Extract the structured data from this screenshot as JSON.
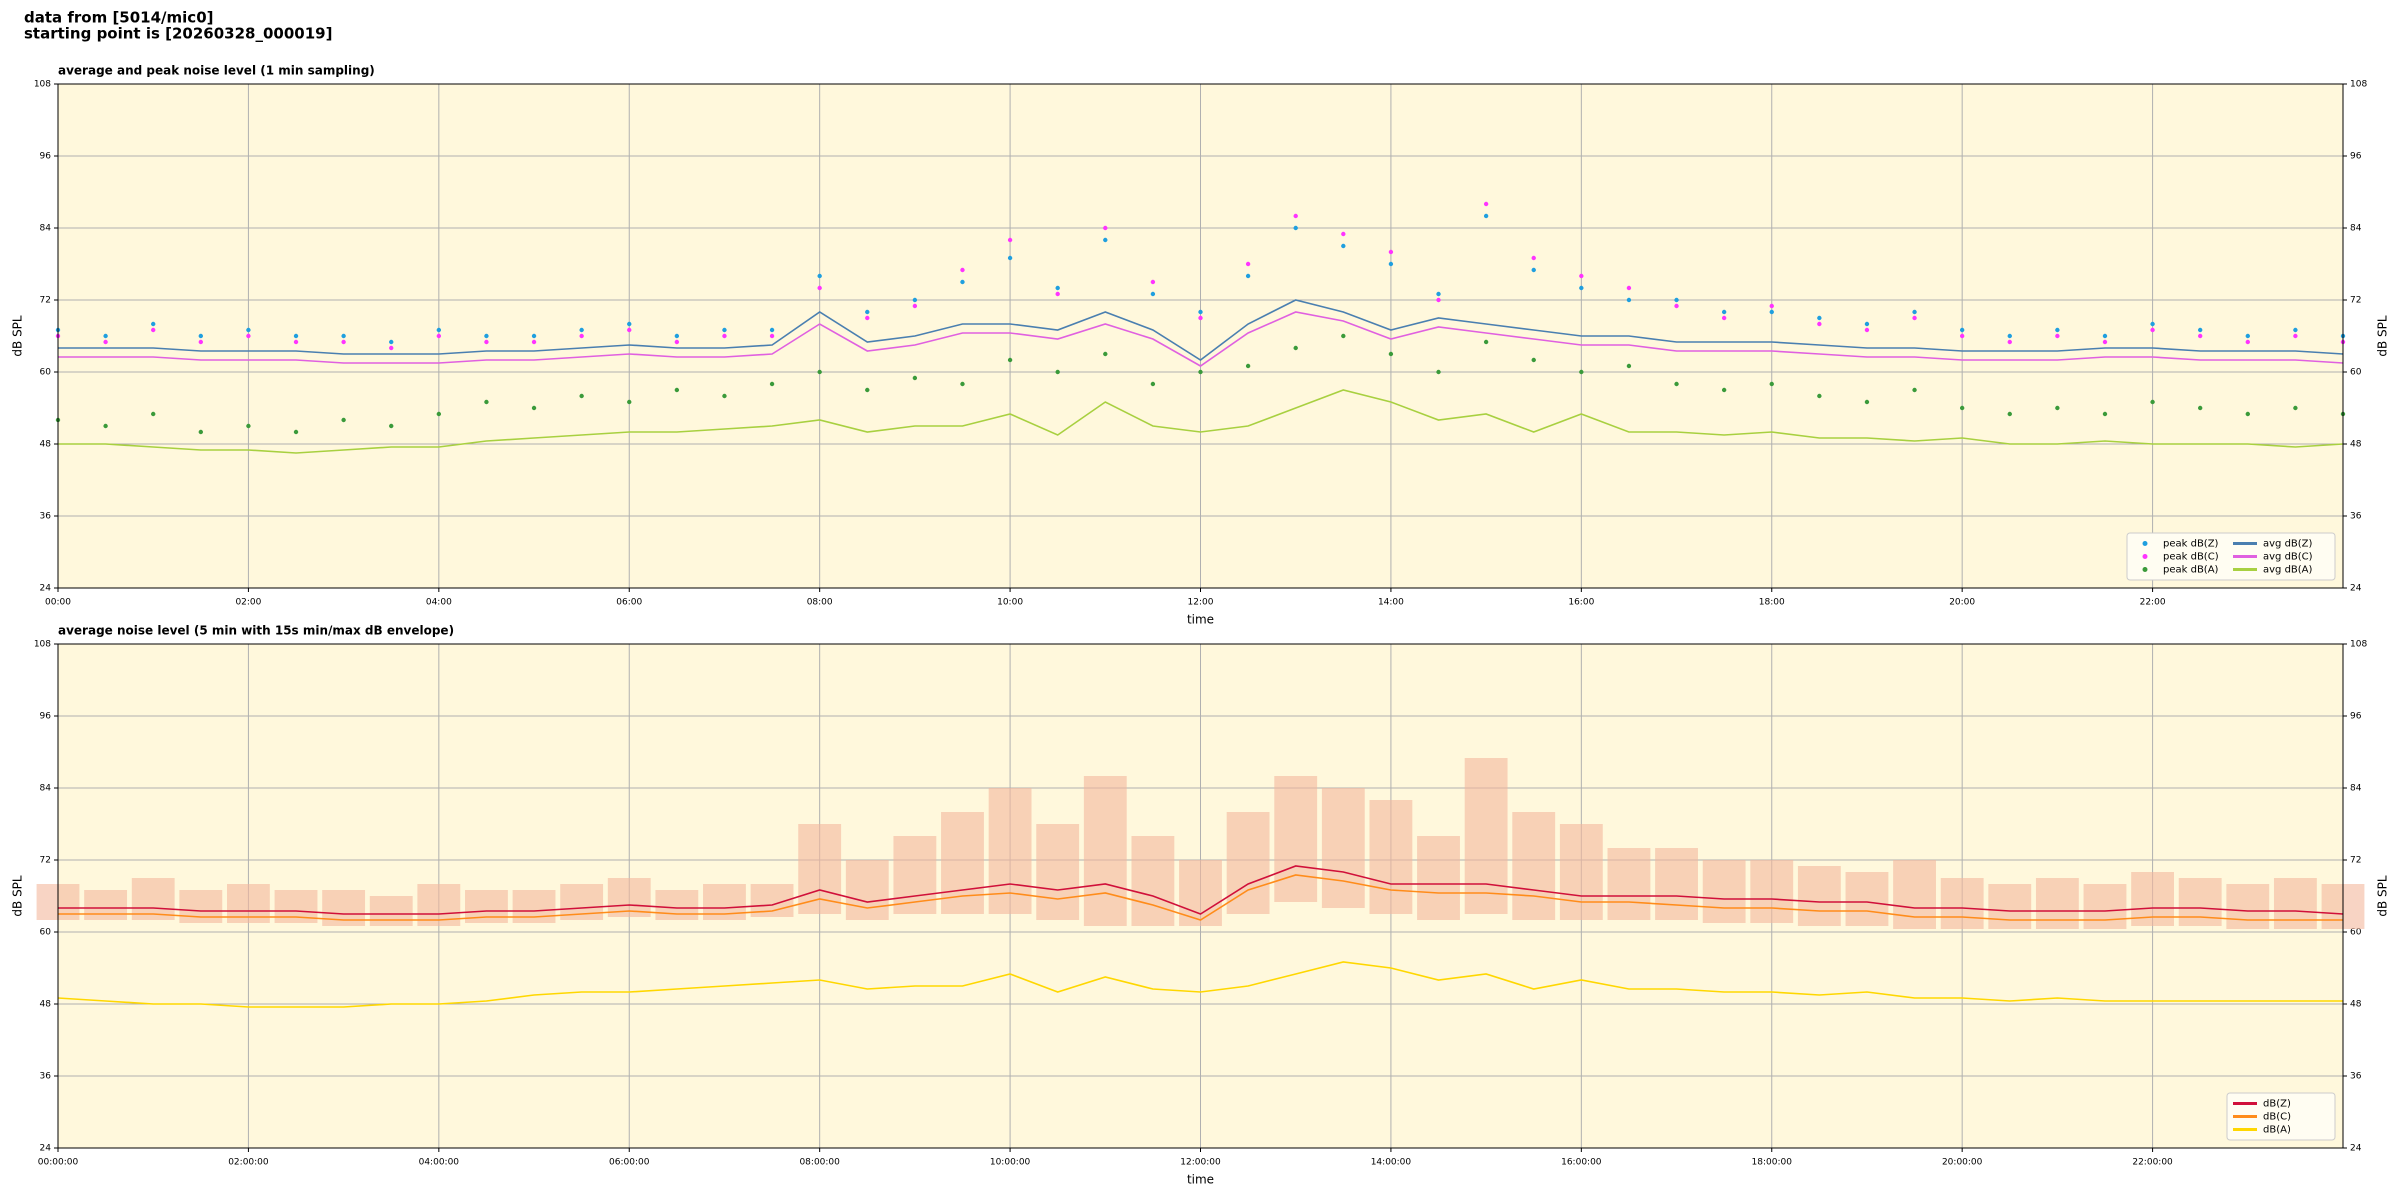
{
  "header": {
    "lines": [
      "data from [5014/mic0]",
      "starting point is [20260328_000019]"
    ]
  },
  "chart_data": [
    {
      "type": "line",
      "title": "average and peak noise level (1 min sampling)",
      "x_label": "time",
      "y_label": "dB SPL",
      "xlim": [
        0,
        24
      ],
      "ylim": [
        24,
        108
      ],
      "xticks": [
        {
          "value": 0,
          "label": "00:00"
        },
        {
          "value": 2,
          "label": "02:00"
        },
        {
          "value": 4,
          "label": "04:00"
        },
        {
          "value": 6,
          "label": "06:00"
        },
        {
          "value": 8,
          "label": "08:00"
        },
        {
          "value": 10,
          "label": "10:00"
        },
        {
          "value": 12,
          "label": "12:00"
        },
        {
          "value": 14,
          "label": "14:00"
        },
        {
          "value": 16,
          "label": "16:00"
        },
        {
          "value": 18,
          "label": "18:00"
        },
        {
          "value": 20,
          "label": "20:00"
        },
        {
          "value": 22,
          "label": "22:00"
        }
      ],
      "yticks": [
        24,
        36,
        48,
        60,
        72,
        84,
        96,
        108
      ],
      "grid": true,
      "background": "#fff8dc",
      "legend": "lower right",
      "legend_ncol": 2,
      "x": [
        0,
        0.5,
        1,
        1.5,
        2,
        2.5,
        3,
        3.5,
        4,
        4.5,
        5,
        5.5,
        6,
        6.5,
        7,
        7.5,
        8,
        8.5,
        9,
        9.5,
        10,
        10.5,
        11,
        11.5,
        12,
        12.5,
        13,
        13.5,
        14,
        14.5,
        15,
        15.5,
        16,
        16.5,
        17,
        17.5,
        18,
        18.5,
        19,
        19.5,
        20,
        20.5,
        21,
        21.5,
        22,
        22.5,
        23,
        23.5,
        24
      ],
      "series": [
        {
          "name": "peak dB(Z)",
          "type": "scatter",
          "color": "#1f9fdf",
          "values": [
            67,
            66,
            68,
            66,
            67,
            66,
            66,
            65,
            67,
            66,
            66,
            67,
            68,
            66,
            67,
            67,
            76,
            70,
            72,
            75,
            79,
            74,
            82,
            73,
            70,
            76,
            84,
            81,
            78,
            73,
            86,
            77,
            74,
            72,
            72,
            70,
            70,
            69,
            68,
            70,
            67,
            66,
            67,
            66,
            68,
            67,
            66,
            67,
            66
          ]
        },
        {
          "name": "peak dB(C)",
          "type": "scatter",
          "color": "#ff33ff",
          "values": [
            66,
            65,
            67,
            65,
            66,
            65,
            65,
            64,
            66,
            65,
            65,
            66,
            67,
            65,
            66,
            66,
            74,
            69,
            71,
            77,
            82,
            73,
            84,
            75,
            69,
            78,
            86,
            83,
            80,
            72,
            88,
            79,
            76,
            74,
            71,
            69,
            71,
            68,
            67,
            69,
            66,
            65,
            66,
            65,
            67,
            66,
            65,
            66,
            65
          ]
        },
        {
          "name": "peak dB(A)",
          "type": "scatter",
          "color": "#3a9a3a",
          "values": [
            52,
            51,
            53,
            50,
            51,
            50,
            52,
            51,
            53,
            55,
            54,
            56,
            55,
            57,
            56,
            58,
            60,
            57,
            59,
            58,
            62,
            60,
            63,
            58,
            60,
            61,
            64,
            66,
            63,
            60,
            65,
            62,
            60,
            61,
            58,
            57,
            58,
            56,
            55,
            57,
            54,
            53,
            54,
            53,
            55,
            54,
            53,
            54,
            53
          ]
        },
        {
          "name": "avg dB(Z)",
          "type": "line",
          "color": "#4a7fb0",
          "values": [
            64,
            64,
            64,
            63.5,
            63.5,
            63.5,
            63,
            63,
            63,
            63.5,
            63.5,
            64,
            64.5,
            64,
            64,
            64.5,
            70,
            65,
            66,
            68,
            68,
            67,
            70,
            67,
            62,
            68,
            72,
            70,
            67,
            69,
            68,
            67,
            66,
            66,
            65,
            65,
            65,
            64.5,
            64,
            64,
            63.5,
            63.5,
            63.5,
            64,
            64,
            63.5,
            63.5,
            63.5,
            63
          ]
        },
        {
          "name": "avg dB(C)",
          "type": "line",
          "color": "#e060e0",
          "values": [
            62.5,
            62.5,
            62.5,
            62,
            62,
            62,
            61.5,
            61.5,
            61.5,
            62,
            62,
            62.5,
            63,
            62.5,
            62.5,
            63,
            68,
            63.5,
            64.5,
            66.5,
            66.5,
            65.5,
            68,
            65.5,
            61,
            66.5,
            70,
            68.5,
            65.5,
            67.5,
            66.5,
            65.5,
            64.5,
            64.5,
            63.5,
            63.5,
            63.5,
            63,
            62.5,
            62.5,
            62,
            62,
            62,
            62.5,
            62.5,
            62,
            62,
            62,
            61.5
          ]
        },
        {
          "name": "avg dB(A)",
          "type": "line",
          "color": "#a8d040",
          "values": [
            48,
            48,
            47.5,
            47,
            47,
            46.5,
            47,
            47.5,
            47.5,
            48.5,
            49,
            49.5,
            50,
            50,
            50.5,
            51,
            52,
            50,
            51,
            51,
            53,
            49.5,
            55,
            51,
            50,
            51,
            54,
            57,
            55,
            52,
            53,
            50,
            53,
            50,
            50,
            49.5,
            50,
            49,
            49,
            48.5,
            49,
            48,
            48,
            48.5,
            48,
            48,
            48,
            47.5,
            48
          ]
        }
      ]
    },
    {
      "type": "line",
      "title": "average noise level (5 min with 15s min/max dB envelope)",
      "x_label": "time",
      "y_label": "dB SPL",
      "xlim": [
        0,
        24
      ],
      "ylim": [
        24,
        108
      ],
      "xticks": [
        {
          "value": 0,
          "label": "00:00:00"
        },
        {
          "value": 2,
          "label": "02:00:00"
        },
        {
          "value": 4,
          "label": "04:00:00"
        },
        {
          "value": 6,
          "label": "06:00:00"
        },
        {
          "value": 8,
          "label": "08:00:00"
        },
        {
          "value": 10,
          "label": "10:00:00"
        },
        {
          "value": 12,
          "label": "12:00:00"
        },
        {
          "value": 14,
          "label": "14:00:00"
        },
        {
          "value": 16,
          "label": "16:00:00"
        },
        {
          "value": 18,
          "label": "18:00:00"
        },
        {
          "value": 20,
          "label": "20:00:00"
        },
        {
          "value": 22,
          "label": "22:00:00"
        }
      ],
      "yticks": [
        24,
        36,
        48,
        60,
        72,
        84,
        96,
        108
      ],
      "grid": true,
      "background": "#fff8dc",
      "legend": "lower right",
      "legend_ncol": 1,
      "x": [
        0,
        0.5,
        1,
        1.5,
        2,
        2.5,
        3,
        3.5,
        4,
        4.5,
        5,
        5.5,
        6,
        6.5,
        7,
        7.5,
        8,
        8.5,
        9,
        9.5,
        10,
        10.5,
        11,
        11.5,
        12,
        12.5,
        13,
        13.5,
        14,
        14.5,
        15,
        15.5,
        16,
        16.5,
        17,
        17.5,
        18,
        18.5,
        19,
        19.5,
        20,
        20.5,
        21,
        21.5,
        22,
        22.5,
        23,
        23.5,
        24
      ],
      "envelope": {
        "color": "#f4b89c",
        "low": [
          62,
          62,
          62,
          61.5,
          61.5,
          61.5,
          61,
          61,
          61,
          61.5,
          61.5,
          62,
          62.5,
          62,
          62,
          62.5,
          63,
          62,
          63,
          63,
          63,
          62,
          61,
          61,
          61,
          63,
          65,
          64,
          63,
          62,
          63,
          62,
          62,
          62,
          62,
          61.5,
          61.5,
          61,
          61,
          60.5,
          60.5,
          60.5,
          60.5,
          60.5,
          61,
          61,
          60.5,
          60.5,
          60.5
        ],
        "high": [
          68,
          67,
          69,
          67,
          68,
          67,
          67,
          66,
          68,
          67,
          67,
          68,
          69,
          67,
          68,
          68,
          78,
          72,
          76,
          80,
          84,
          78,
          86,
          76,
          72,
          80,
          86,
          84,
          82,
          76,
          89,
          80,
          78,
          74,
          74,
          72,
          72,
          71,
          70,
          72,
          69,
          68,
          69,
          68,
          70,
          69,
          68,
          69,
          68
        ]
      },
      "series": [
        {
          "name": "dB(Z)",
          "type": "line",
          "color": "#d0103a",
          "values": [
            64,
            64,
            64,
            63.5,
            63.5,
            63.5,
            63,
            63,
            63,
            63.5,
            63.5,
            64,
            64.5,
            64,
            64,
            64.5,
            67,
            65,
            66,
            67,
            68,
            67,
            68,
            66,
            63,
            68,
            71,
            70,
            68,
            68,
            68,
            67,
            66,
            66,
            66,
            65.5,
            65.5,
            65,
            65,
            64,
            64,
            63.5,
            63.5,
            63.5,
            64,
            64,
            63.5,
            63.5,
            63
          ]
        },
        {
          "name": "dB(C)",
          "type": "line",
          "color": "#ff8c1a",
          "values": [
            63,
            63,
            63,
            62.5,
            62.5,
            62.5,
            62,
            62,
            62,
            62.5,
            62.5,
            63,
            63.5,
            63,
            63,
            63.5,
            65.5,
            64,
            65,
            66,
            66.5,
            65.5,
            66.5,
            64.5,
            62,
            67,
            69.5,
            68.5,
            67,
            66.5,
            66.5,
            66,
            65,
            65,
            64.5,
            64,
            64,
            63.5,
            63.5,
            62.5,
            62.5,
            62,
            62,
            62,
            62.5,
            62.5,
            62,
            62,
            62
          ]
        },
        {
          "name": "dB(A)",
          "type": "line",
          "color": "#ffd700",
          "values": [
            49,
            48.5,
            48,
            48,
            47.5,
            47.5,
            47.5,
            48,
            48,
            48.5,
            49.5,
            50,
            50,
            50.5,
            51,
            51.5,
            52,
            50.5,
            51,
            51,
            53,
            50,
            52.5,
            50.5,
            50,
            51,
            53,
            55,
            54,
            52,
            53,
            50.5,
            52,
            50.5,
            50.5,
            50,
            50,
            49.5,
            50,
            49,
            49,
            48.5,
            49,
            48.5,
            48.5,
            48.5,
            48.5,
            48.5,
            48.5
          ]
        }
      ]
    }
  ]
}
